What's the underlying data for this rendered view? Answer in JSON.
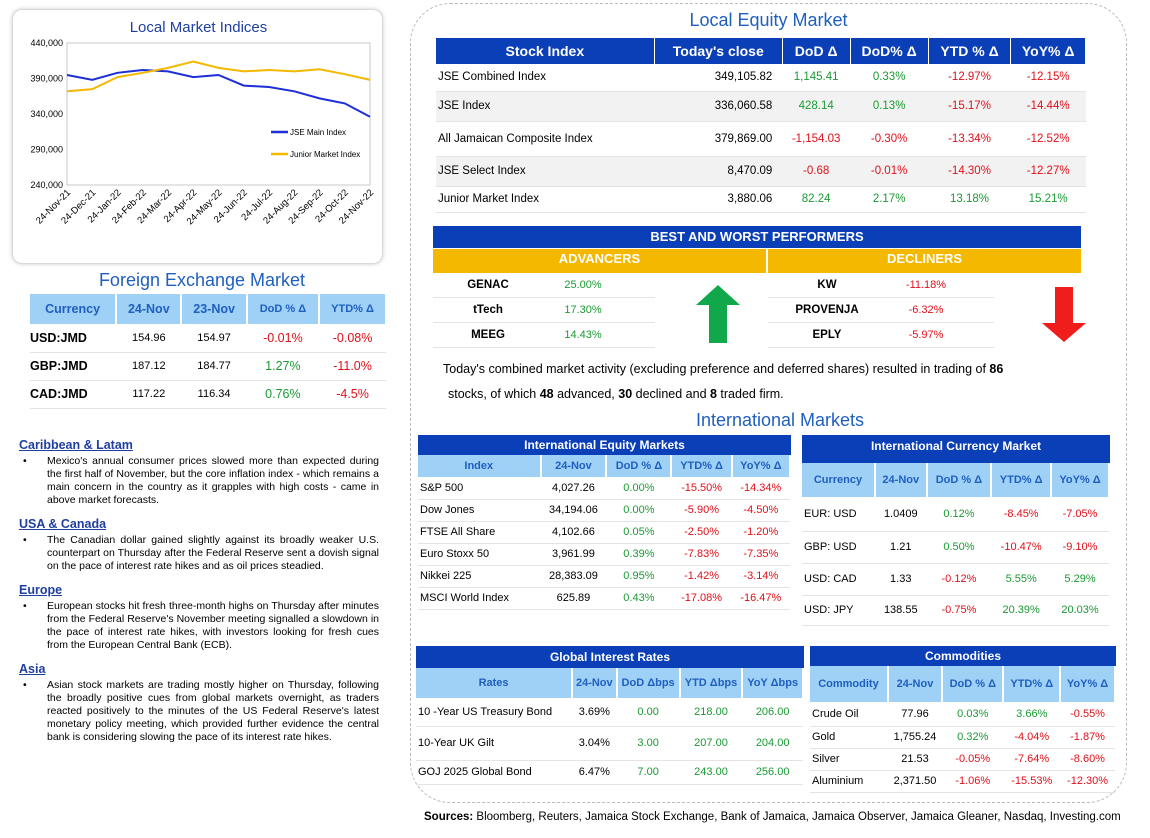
{
  "chart": {
    "title": "Local Market Indices",
    "y_ticks": [
      "440,000",
      "390,000",
      "340,000",
      "290,000",
      "240,000"
    ],
    "x_ticks": [
      "24-Nov-21",
      "24-Dec-21",
      "24-Jan-22",
      "24-Feb-22",
      "24-Mar-22",
      "24-Apr-22",
      "24-May-22",
      "24-Jun-22",
      "24-Jul-22",
      "24-Aug-22",
      "24-Sep-22",
      "24-Oct-22",
      "24-Nov-22"
    ],
    "legend": [
      "JSE Main Index",
      "Junior Market Index"
    ],
    "colors": {
      "main": "#1c2ed8",
      "junior": "#f5b800"
    }
  },
  "chart_data": {
    "type": "line",
    "title": "Local Market Indices",
    "ylim": [
      240000,
      440000
    ],
    "x": [
      "24-Nov-21",
      "24-Dec-21",
      "24-Jan-22",
      "24-Feb-22",
      "24-Mar-22",
      "24-Apr-22",
      "24-May-22",
      "24-Jun-22",
      "24-Jul-22",
      "24-Aug-22",
      "24-Sep-22",
      "24-Oct-22",
      "24-Nov-22"
    ],
    "series": [
      {
        "name": "JSE Main Index",
        "values": [
          395000,
          388000,
          398000,
          402000,
          400000,
          392000,
          395000,
          380000,
          378000,
          372000,
          362000,
          355000,
          336000
        ]
      },
      {
        "name": "Junior Market Index",
        "values": [
          372000,
          375000,
          392000,
          398000,
          405000,
          414000,
          405000,
          400000,
          402000,
          400000,
          403000,
          396000,
          388000
        ]
      }
    ]
  },
  "fx": {
    "title": "Foreign Exchange Market",
    "headers": [
      "Currency",
      "24-Nov",
      "23-Nov",
      "DoD % Δ",
      "YTD% Δ"
    ],
    "rows": [
      [
        "USD:JMD",
        "154.96",
        "154.97",
        "-0.01%",
        "-0.08%"
      ],
      [
        "GBP:JMD",
        "187.12",
        "184.77",
        "1.27%",
        "-11.0%"
      ],
      [
        "CAD:JMD",
        "117.22",
        "116.34",
        "0.76%",
        "-4.5%"
      ]
    ]
  },
  "news": [
    {
      "h": "Caribbean & Latam",
      "p": "Mexico's annual consumer prices slowed more than expected during the first half of November, but the core inflation index - which remains a main concern in the country as it grapples with high costs - came in above market forecasts."
    },
    {
      "h": "USA & Canada",
      "p": "The Canadian dollar gained slightly against its broadly weaker U.S. counterpart on Thursday after the Federal Reserve sent a dovish signal on the pace of interest rate hikes and as oil prices steadied."
    },
    {
      "h": "Europe",
      "p": "European stocks hit fresh three-month highs on Thursday after minutes from the Federal Reserve's November meeting signalled a slowdown in the pace of interest rate hikes, with investors looking for fresh cues from the European Central Bank (ECB)."
    },
    {
      "h": "Asia",
      "p": "Asian stock markets are trading mostly higher on Thursday, following the broadly positive cues from global markets overnight, as traders reacted positively to the minutes of the US Federal Reserve's latest monetary policy meeting, which provided further evidence the central bank is considering slowing the pace of its interest rate hikes."
    }
  ],
  "equity": {
    "title": "Local Equity Market",
    "headers": [
      "Stock Index",
      "Today's close",
      "DoD  Δ",
      "DoD% Δ",
      "YTD % Δ",
      "YoY% Δ"
    ],
    "rows": [
      [
        "JSE Combined Index",
        "349,105.82",
        "1,145.41",
        "0.33%",
        "-12.97%",
        "-12.15%"
      ],
      [
        "JSE Index",
        "336,060.58",
        "428.14",
        "0.13%",
        "-15.17%",
        "-14.44%"
      ],
      [
        "All Jamaican Composite Index",
        "379,869.00",
        "-1,154.03",
        "-0.30%",
        "-13.34%",
        "-12.52%"
      ],
      [
        "JSE Select Index",
        "8,470.09",
        "-0.68",
        "-0.01%",
        "-14.30%",
        "-12.27%"
      ],
      [
        "Junior Market Index",
        "3,880.06",
        "82.24",
        "2.17%",
        "13.18%",
        "15.21%"
      ]
    ]
  },
  "perf": {
    "title": "BEST AND WORST PERFORMERS",
    "adv_label": "ADVANCERS",
    "dec_label": "DECLINERS",
    "adv": [
      [
        "GENAC",
        "25.00%"
      ],
      [
        "tTech",
        "17.30%"
      ],
      [
        "MEEG",
        "14.43%"
      ]
    ],
    "dec": [
      [
        "KW",
        "-11.18%"
      ],
      [
        "PROVENJA",
        "-6.32%"
      ],
      [
        "EPLY",
        "-5.97%"
      ]
    ],
    "summary_a": "Today's combined market activity (excluding preference and deferred shares) resulted in trading of ",
    "n_total": "86",
    "summary_b": "stocks, of which ",
    "n_adv": "48",
    "summary_c": " advanced, ",
    "n_dec": "30",
    "summary_d": " declined and ",
    "n_firm": "8",
    "summary_e": " traded firm."
  },
  "intl": {
    "title": "International Markets",
    "eq": {
      "title": "International Equity Markets",
      "headers": [
        "Index",
        "24-Nov",
        "DoD % Δ",
        "YTD% Δ",
        "YoY% Δ"
      ],
      "rows": [
        [
          "S&P 500",
          "4,027.26",
          "0.00%",
          "-15.50%",
          "-14.34%"
        ],
        [
          "Dow Jones",
          "34,194.06",
          "0.00%",
          "-5.90%",
          "-4.50%"
        ],
        [
          "FTSE All Share",
          "4,102.66",
          "0.05%",
          "-2.50%",
          "-1.20%"
        ],
        [
          "Euro Stoxx 50",
          "3,961.99",
          "0.39%",
          "-7.83%",
          "-7.35%"
        ],
        [
          "Nikkei 225",
          "28,383.09",
          "0.95%",
          "-1.42%",
          "-3.14%"
        ],
        [
          "MSCI World Index",
          "625.89",
          "0.43%",
          "-17.08%",
          "-16.47%"
        ]
      ]
    },
    "cur": {
      "title": "International Currency Market",
      "headers": [
        "Currency",
        "24-Nov",
        "DoD % Δ",
        "YTD% Δ",
        "YoY% Δ"
      ],
      "rows": [
        [
          "EUR: USD",
          "1.0409",
          "0.12%",
          "-8.45%",
          "-7.05%"
        ],
        [
          "GBP: USD",
          "1.21",
          "0.50%",
          "-10.47%",
          "-9.10%"
        ],
        [
          "USD: CAD",
          "1.33",
          "-0.12%",
          "5.55%",
          "5.29%"
        ],
        [
          "USD: JPY",
          "138.55",
          "-0.75%",
          "20.39%",
          "20.03%"
        ]
      ]
    },
    "rates": {
      "title": "Global Interest Rates",
      "headers": [
        "Rates",
        "24-Nov",
        "DoD Δbps",
        "YTD Δbps",
        "YoY Δbps"
      ],
      "rows": [
        [
          "10 -Year US Treasury Bond",
          "3.69%",
          "0.00",
          "218.00",
          "206.00"
        ],
        [
          "10-Year UK Gilt",
          "3.04%",
          "3.00",
          "207.00",
          "204.00"
        ],
        [
          "GOJ 2025 Global Bond",
          "6.47%",
          "7.00",
          "243.00",
          "256.00"
        ]
      ]
    },
    "com": {
      "title": "Commodities",
      "headers": [
        "Commodity",
        "24-Nov",
        "DoD % Δ",
        "YTD% Δ",
        "YoY% Δ"
      ],
      "rows": [
        [
          "Crude Oil",
          "77.96",
          "0.03%",
          "3.66%",
          "-0.55%"
        ],
        [
          "Gold",
          "1,755.24",
          "0.32%",
          "-4.04%",
          "-1.87%"
        ],
        [
          "Silver",
          "21.53",
          "-0.05%",
          "-7.64%",
          "-8.60%"
        ],
        [
          "Aluminium",
          "2,371.50",
          "-1.06%",
          "-15.53%",
          "-12.30%"
        ]
      ]
    }
  },
  "sources_label": "Sources:",
  "sources": " Bloomberg, Reuters, Jamaica Stock Exchange, Bank of Jamaica, Jamaica Observer, Jamaica Gleaner, Nasdaq, Investing.com"
}
